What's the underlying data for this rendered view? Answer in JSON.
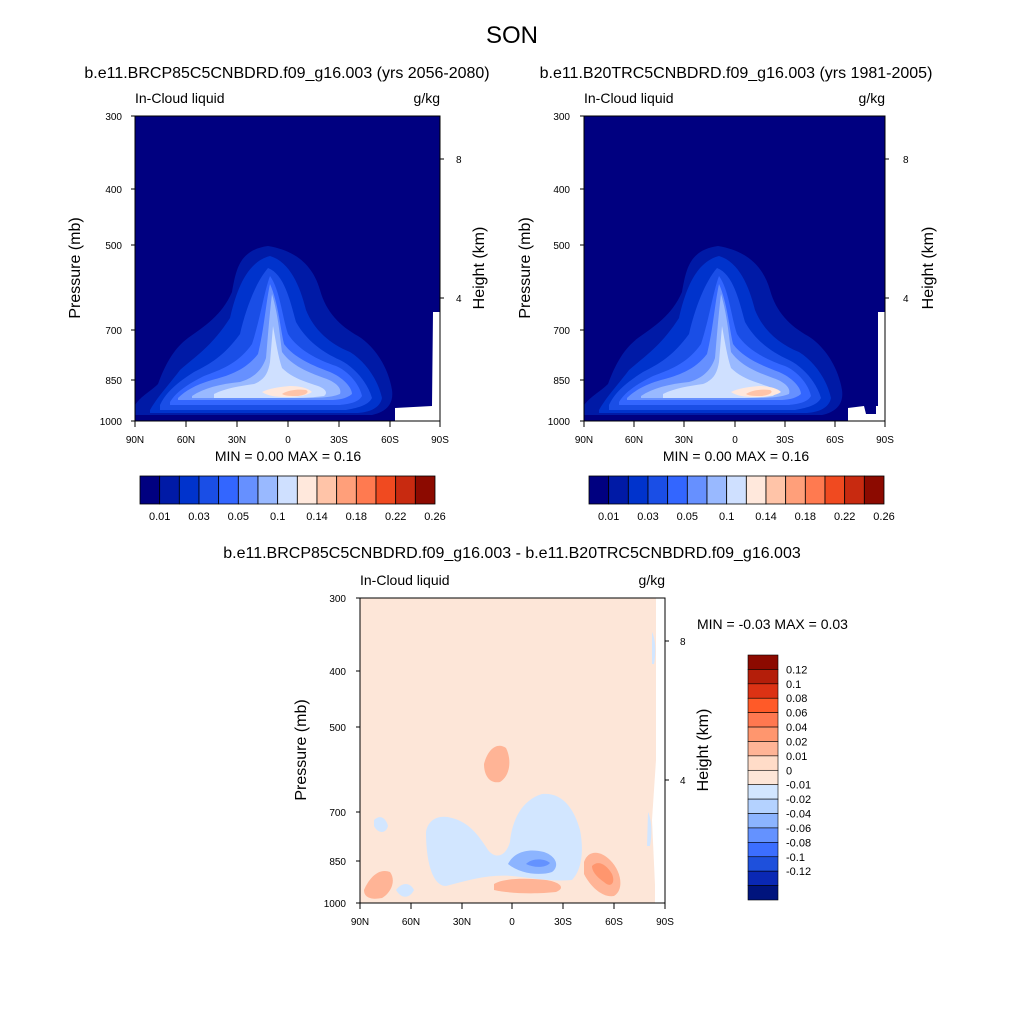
{
  "figure_title": "SON",
  "chart_data": [
    {
      "type": "heatmap",
      "title": "b.e11.BRCP85C5CNBDRD.f09_g16.003 (yrs 2056-2080)",
      "left_label": "In-Cloud liquid",
      "right_label": "g/kg",
      "xlabel": "",
      "ylabel": "Pressure (mb)",
      "y2label": "Height (km)",
      "x_ticks": [
        "90N",
        "60N",
        "30N",
        "0",
        "30S",
        "60S",
        "90S"
      ],
      "y_ticks": [
        "300",
        "400",
        "500",
        "700",
        "850",
        "1000"
      ],
      "y2_ticks": [
        "8",
        "4"
      ],
      "ylim": [
        1000,
        300
      ],
      "min_label": "MIN =   0.00",
      "max_label": "MAX =   0.16",
      "min": 0.0,
      "max": 0.16,
      "features": [
        {
          "lat": 10,
          "pressure": 880,
          "value": 0.14
        },
        {
          "lat": 10,
          "pressure": 600,
          "value": 0.09
        },
        {
          "lat": 0,
          "pressure": 860,
          "value": 0.1
        }
      ]
    },
    {
      "type": "heatmap",
      "title": "b.e11.B20TRC5CNBDRD.f09_g16.003 (yrs 1981-2005)",
      "left_label": "In-Cloud liquid",
      "right_label": "g/kg",
      "xlabel": "",
      "ylabel": "Pressure (mb)",
      "y2label": "Height (km)",
      "x_ticks": [
        "90N",
        "60N",
        "30N",
        "0",
        "30S",
        "60S",
        "90S"
      ],
      "y_ticks": [
        "300",
        "400",
        "500",
        "700",
        "850",
        "1000"
      ],
      "y2_ticks": [
        "8",
        "4"
      ],
      "ylim": [
        1000,
        300
      ],
      "min_label": "MIN =   0.00",
      "max_label": "MAX =   0.16",
      "min": 0.0,
      "max": 0.16,
      "features": [
        {
          "lat": 10,
          "pressure": 880,
          "value": 0.14
        },
        {
          "lat": 10,
          "pressure": 600,
          "value": 0.09
        },
        {
          "lat": 0,
          "pressure": 860,
          "value": 0.1
        }
      ]
    },
    {
      "type": "heatmap",
      "title": "b.e11.BRCP85C5CNBDRD.f09_g16.003 - b.e11.B20TRC5CNBDRD.f09_g16.003",
      "left_label": "In-Cloud liquid",
      "right_label": "g/kg",
      "xlabel": "",
      "ylabel": "Pressure (mb)",
      "y2label": "Height (km)",
      "x_ticks": [
        "90N",
        "60N",
        "30N",
        "0",
        "30S",
        "60S",
        "90S"
      ],
      "y_ticks": [
        "300",
        "400",
        "500",
        "700",
        "850",
        "1000"
      ],
      "y2_ticks": [
        "8",
        "4"
      ],
      "ylim": [
        1000,
        300
      ],
      "min_label": "MIN =  -0.03",
      "max_label": "MAX =   0.03",
      "min": -0.03,
      "max": 0.03
    }
  ],
  "colorbar_abs": {
    "colors": [
      "#000080",
      "#001aa6",
      "#0033cc",
      "#1a4ee6",
      "#3366ff",
      "#6690ff",
      "#99b9ff",
      "#cfe0ff",
      "#ffe8dc",
      "#ffc4a8",
      "#ff9f7a",
      "#ff7a50",
      "#f04a20",
      "#c82a10",
      "#8c0a00"
    ],
    "labels": [
      "0.01",
      "0.03",
      "0.05",
      "0.1",
      "0.14",
      "0.18",
      "0.22",
      "0.26"
    ]
  },
  "colorbar_diff": {
    "colors": [
      "#8c0a00",
      "#b41e0a",
      "#dc3214",
      "#ff5a28",
      "#ff7850",
      "#ff966e",
      "#ffb496",
      "#ffdcc8",
      "#fde6d8",
      "#d2e6ff",
      "#b4d2ff",
      "#8cb4ff",
      "#6492ff",
      "#3c6eff",
      "#1e50dc",
      "#0a28b4",
      "#00147d"
    ],
    "labels": [
      "0.12",
      "0.1",
      "0.08",
      "0.06",
      "0.04",
      "0.02",
      "0.01",
      "0",
      "-0.01",
      "-0.02",
      "-0.04",
      "-0.06",
      "-0.08",
      "-0.1",
      "-0.12"
    ]
  }
}
